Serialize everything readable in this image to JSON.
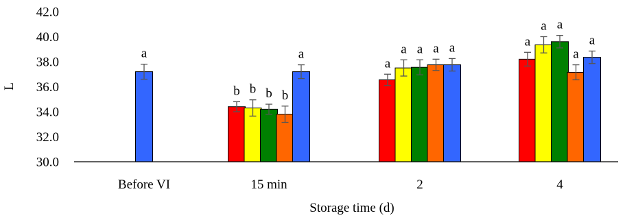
{
  "chart_data": {
    "type": "bar",
    "title": "",
    "xlabel": "Storage time (d)",
    "ylabel": "L",
    "ylim": [
      30,
      42
    ],
    "yticks": [
      30.0,
      32.0,
      34.0,
      36.0,
      38.0,
      40.0,
      42.0
    ],
    "ytick_labels": [
      "30.0",
      "32.0",
      "34.0",
      "36.0",
      "38.0",
      "40.0",
      "42.0"
    ],
    "grid": false,
    "legend": "none",
    "categories": [
      "Before VI",
      "15 min",
      "2",
      "4"
    ],
    "series_colors": [
      "#ff0000",
      "#ffff00",
      "#008000",
      "#ff6600",
      "#3366ff"
    ],
    "groups": [
      {
        "category": "Before VI",
        "bars": [
          {
            "color": "#3366ff",
            "value": 37.2,
            "error": 0.6,
            "label": "a"
          }
        ]
      },
      {
        "category": "15 min",
        "bars": [
          {
            "color": "#ff0000",
            "value": 34.4,
            "error": 0.4,
            "label": "b"
          },
          {
            "color": "#ffff00",
            "value": 34.3,
            "error": 0.65,
            "label": "b"
          },
          {
            "color": "#008000",
            "value": 34.2,
            "error": 0.4,
            "label": "b"
          },
          {
            "color": "#ff6600",
            "value": 33.8,
            "error": 0.65,
            "label": "b"
          },
          {
            "color": "#3366ff",
            "value": 37.2,
            "error": 0.55,
            "label": "a"
          }
        ]
      },
      {
        "category": "2",
        "bars": [
          {
            "color": "#ff0000",
            "value": 36.55,
            "error": 0.45,
            "label": "a"
          },
          {
            "color": "#ffff00",
            "value": 37.5,
            "error": 0.65,
            "label": "a"
          },
          {
            "color": "#008000",
            "value": 37.55,
            "error": 0.6,
            "label": "a"
          },
          {
            "color": "#ff6600",
            "value": 37.75,
            "error": 0.45,
            "label": "a"
          },
          {
            "color": "#3366ff",
            "value": 37.75,
            "error": 0.5,
            "label": "a"
          }
        ]
      },
      {
        "category": "4",
        "bars": [
          {
            "color": "#ff0000",
            "value": 38.2,
            "error": 0.55,
            "label": "a"
          },
          {
            "color": "#ffff00",
            "value": 39.35,
            "error": 0.65,
            "label": "a"
          },
          {
            "color": "#008000",
            "value": 39.6,
            "error": 0.5,
            "label": "a"
          },
          {
            "color": "#ff6600",
            "value": 37.15,
            "error": 0.6,
            "label": "a"
          },
          {
            "color": "#3366ff",
            "value": 38.35,
            "error": 0.5,
            "label": "a"
          }
        ]
      }
    ]
  }
}
